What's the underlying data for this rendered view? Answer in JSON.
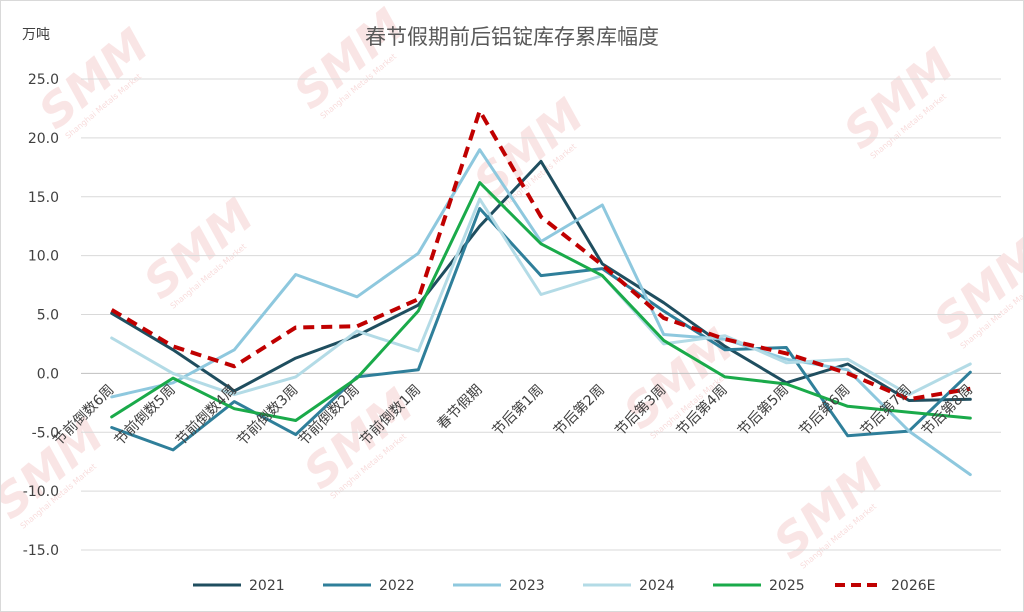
{
  "chart_data": {
    "type": "line",
    "title": "春节假期前后铝锭库存累库幅度",
    "y_unit": "万吨",
    "ylim": [
      -15,
      25
    ],
    "yticks": [
      "-15.0",
      "-10.0",
      "-5.0",
      "0.0",
      "5.0",
      "10.0",
      "15.0",
      "20.0",
      "25.0"
    ],
    "ytick_values": [
      -15,
      -10,
      -5,
      0,
      5,
      10,
      15,
      20,
      25
    ],
    "categories": [
      "节前倒数6周",
      "节前倒数5周",
      "节前倒数4周",
      "节前倒数3周",
      "节前倒数2周",
      "节前倒数1周",
      "春节假期",
      "节后第1周",
      "节后第2周",
      "节后第3周",
      "节后第4周",
      "节后第5周",
      "节后第6周",
      "节后第7周",
      "节后第8周"
    ],
    "grid": true,
    "legend_position": "bottom",
    "series": [
      {
        "name": "2021",
        "color": "#1f4e5f",
        "dash": false,
        "values": [
          5.1,
          2.0,
          -1.5,
          1.3,
          3.2,
          5.8,
          12.5,
          18.0,
          9.3,
          6.0,
          2.3,
          -0.8,
          0.8,
          -2.3,
          -2.2
        ]
      },
      {
        "name": "2022",
        "color": "#2f7f9a",
        "dash": false,
        "values": [
          -4.6,
          -6.5,
          -2.4,
          -5.2,
          -0.3,
          0.3,
          14.0,
          8.3,
          8.9,
          5.3,
          2.0,
          2.2,
          -5.3,
          -4.9,
          0.1
        ]
      },
      {
        "name": "2023",
        "color": "#8ec8de",
        "dash": false,
        "values": [
          -2.0,
          -0.8,
          2.0,
          8.4,
          6.5,
          10.2,
          19.0,
          11.2,
          14.3,
          3.3,
          2.9,
          1.2,
          0.3,
          -4.9,
          -8.6
        ]
      },
      {
        "name": "2024",
        "color": "#b3dbe6",
        "dash": false,
        "values": [
          3.0,
          0.0,
          -1.8,
          -0.3,
          3.6,
          1.9,
          14.8,
          6.7,
          8.3,
          2.5,
          3.2,
          0.9,
          1.2,
          -1.8,
          0.8
        ]
      },
      {
        "name": "2025",
        "color": "#1aaa4a",
        "dash": false,
        "values": [
          -3.7,
          -0.4,
          -3.0,
          -4.0,
          -0.4,
          5.3,
          16.2,
          11.0,
          8.3,
          2.8,
          -0.3,
          -0.9,
          -2.8,
          -3.3,
          -3.8
        ]
      },
      {
        "name": "2026E",
        "color": "#c00000",
        "dash": true,
        "values": [
          5.4,
          2.3,
          0.6,
          3.9,
          4.0,
          6.3,
          22.3,
          13.3,
          9.2,
          4.7,
          2.9,
          1.7,
          0.0,
          -2.2,
          -1.3
        ]
      }
    ]
  },
  "watermark": {
    "text": "SMM",
    "subtext": "Shanghai Metals Market"
  }
}
